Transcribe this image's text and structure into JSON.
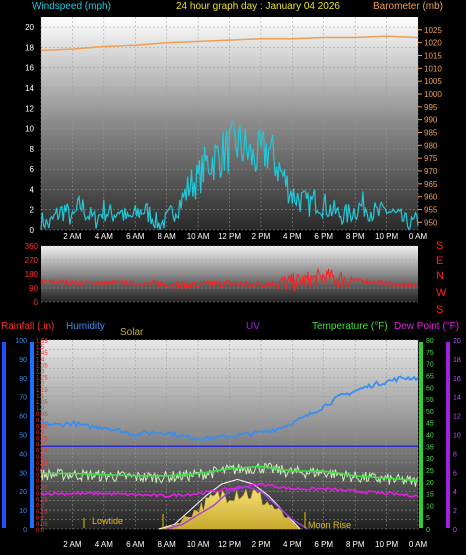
{
  "header": {
    "left_label": "Windspeed (mph)",
    "title": "24 hour graph day : January 04 2026",
    "right_label": "Barometer (mb)"
  },
  "direction_letters": [
    "S",
    "E",
    "N",
    "W",
    "S"
  ],
  "lower_labels": {
    "rainfall": "Rainfall (.in)",
    "humidity": "Humidity",
    "solar": "Solar",
    "uv": "UV",
    "temperature": "Temperature (°F)",
    "dewpoint": "Dew Point (°F)"
  },
  "annotations": {
    "lowtide": "Lowtide",
    "moonrise": "Moon Rise"
  },
  "x_ticks": [
    "2 AM",
    "4 AM",
    "6 AM",
    "8 AM",
    "10 AM",
    "12 PM",
    "2 PM",
    "4 PM",
    "6 PM",
    "8 PM",
    "10 PM",
    "0 AM"
  ],
  "colors": {
    "wind": "#22c8d8",
    "barometer": "#f0a050",
    "direction": "#ff2020",
    "humidity": "#3a8ef0",
    "temperature": "#40e040",
    "temp_trace": "#c8f0b8",
    "dewpoint": "#e020e0",
    "solar": "#e8d070",
    "uv": "#a040e0",
    "rain": "#1e4fff"
  },
  "chart_data": [
    {
      "type": "line",
      "title": "24 hour graph day : January 04 2026",
      "ylabel": "Windspeed (mph)",
      "y2label": "Barometer (mb)",
      "x_unit": "hours",
      "xlim": [
        0,
        24
      ],
      "ylim": [
        0,
        21
      ],
      "y2lim": [
        947,
        1030
      ],
      "yticks": [
        0,
        2,
        4,
        6,
        8,
        10,
        12,
        14,
        16,
        18,
        20
      ],
      "y2ticks": [
        950,
        955,
        960,
        965,
        970,
        975,
        980,
        985,
        990,
        995,
        1000,
        1005,
        1010,
        1015,
        1020,
        1025
      ],
      "series": [
        {
          "name": "Windspeed (mph)",
          "axis": "left",
          "x": [
            0,
            0.5,
            1,
            1.5,
            2,
            2.5,
            3,
            3.5,
            4,
            4.5,
            5,
            5.5,
            6,
            6.5,
            7,
            7.5,
            8,
            8.5,
            9,
            9.5,
            10,
            10.5,
            11,
            11.5,
            12,
            12.5,
            13,
            13.5,
            14,
            14.5,
            15,
            15.5,
            16,
            16.5,
            17,
            17.5,
            18,
            18.5,
            19,
            19.5,
            20,
            20.5,
            21,
            21.5,
            22,
            22.5,
            23,
            23.5,
            24
          ],
          "values": [
            1,
            0.5,
            1.5,
            2,
            1,
            2.5,
            1.5,
            1,
            2,
            1.5,
            2,
            1,
            1.5,
            2,
            1.5,
            0.5,
            1,
            2,
            3,
            4.5,
            5,
            6.5,
            7,
            7.5,
            8,
            8.5,
            8,
            7,
            7.5,
            8,
            6.5,
            5,
            3.5,
            3,
            2.5,
            3,
            2.5,
            2,
            1.5,
            1.5,
            2,
            2.5,
            2,
            1.5,
            2,
            1.5,
            1,
            0.5,
            1
          ]
        },
        {
          "name": "Barometer (mb)",
          "axis": "right",
          "x": [
            0,
            2,
            4,
            6,
            8,
            10,
            12,
            14,
            16,
            18,
            20,
            22,
            24
          ],
          "values": [
            1017,
            1017.5,
            1018.5,
            1019,
            1020,
            1020.5,
            1021,
            1021.5,
            1021.5,
            1022,
            1022,
            1022.5,
            1022
          ]
        }
      ]
    },
    {
      "type": "line",
      "xlim": [
        0,
        24
      ],
      "ylim": [
        0,
        360
      ],
      "yticks": [
        0,
        90,
        180,
        270,
        360
      ],
      "series": [
        {
          "name": "Wind direction",
          "x": [
            0,
            1,
            2,
            3,
            4,
            5,
            6,
            7,
            8,
            9,
            10,
            11,
            12,
            13,
            14,
            15,
            16,
            17,
            18,
            19,
            20,
            21,
            22,
            23,
            24
          ],
          "values": [
            130,
            130,
            125,
            125,
            120,
            125,
            120,
            115,
            115,
            110,
            110,
            115,
            120,
            110,
            115,
            120,
            125,
            140,
            160,
            150,
            140,
            130,
            120,
            110,
            100
          ]
        }
      ]
    },
    {
      "type": "line",
      "xlim": [
        0,
        24
      ],
      "ylim": [
        0,
        100
      ],
      "yticks": [
        0,
        5,
        10,
        15,
        20,
        25,
        30,
        35,
        40,
        45,
        50,
        55,
        60,
        65,
        70,
        75,
        80,
        85,
        90,
        95,
        100
      ],
      "rain_ticks": [
        0,
        0.05,
        0.1,
        0.15,
        0.2,
        0.25,
        0.3,
        0.35,
        0.4,
        0.45,
        0.5,
        0.55,
        0.6,
        0.65,
        0.7,
        0.75,
        0.8,
        0.85,
        0.9,
        0.95,
        1,
        1.05,
        1.1,
        1.15,
        1.2,
        1.25,
        1.3,
        1.35,
        1.4,
        1.45,
        1.5,
        1.55
      ],
      "temp_ticks": [
        0,
        5,
        10,
        15,
        20,
        25,
        30,
        35,
        40,
        45,
        50,
        55,
        60,
        65,
        70,
        75,
        80
      ],
      "uv_ticks": [
        0,
        2,
        4,
        6,
        8,
        10,
        12,
        14,
        16,
        18,
        20
      ],
      "series": [
        {
          "name": "Humidity",
          "x": [
            0,
            1,
            2,
            3,
            4,
            5,
            6,
            7,
            8,
            9,
            10,
            11,
            12,
            13,
            14,
            15,
            16,
            17,
            18,
            19,
            20,
            21,
            22,
            23,
            24
          ],
          "values": [
            56,
            55,
            56,
            54,
            54,
            52,
            50,
            51,
            51,
            49,
            48,
            48,
            49,
            50,
            51,
            53,
            56,
            60,
            65,
            70,
            73,
            76,
            78,
            80,
            80
          ]
        },
        {
          "name": "Temperature (°F)",
          "x": [
            0,
            2,
            4,
            6,
            8,
            10,
            12,
            14,
            16,
            18,
            20,
            22,
            24
          ],
          "values": [
            35,
            35,
            35,
            35,
            35,
            35,
            35,
            35,
            35,
            35,
            35,
            35,
            35
          ]
        },
        {
          "name": "Temperature trace",
          "x": [
            0,
            2,
            4,
            6,
            8,
            10,
            12,
            14,
            16,
            18,
            20,
            22,
            24
          ],
          "values": [
            23,
            23,
            22.5,
            22,
            22,
            23,
            25,
            26,
            24,
            24,
            22,
            21,
            20
          ]
        },
        {
          "name": "Dew Point (°F)",
          "x": [
            0,
            2,
            4,
            6,
            8,
            10,
            12,
            14,
            16,
            18,
            20,
            22,
            24
          ],
          "values": [
            15,
            15,
            15,
            14.5,
            14,
            15,
            17,
            19,
            17,
            17,
            16,
            15,
            14
          ]
        },
        {
          "name": "Solar",
          "x": [
            7.5,
            8.5,
            9.5,
            10.5,
            11.5,
            12.5,
            13.5,
            14.5,
            15.5,
            16.5
          ],
          "values": [
            0,
            2,
            8,
            14,
            19,
            21,
            19,
            14,
            7,
            0
          ]
        },
        {
          "name": "UV",
          "x": [
            8,
            9,
            10,
            11,
            12,
            13,
            14,
            15,
            16,
            17
          ],
          "values": [
            0,
            0.5,
            1.5,
            2.5,
            4,
            4.5,
            4,
            2.5,
            1,
            0
          ]
        }
      ]
    }
  ]
}
